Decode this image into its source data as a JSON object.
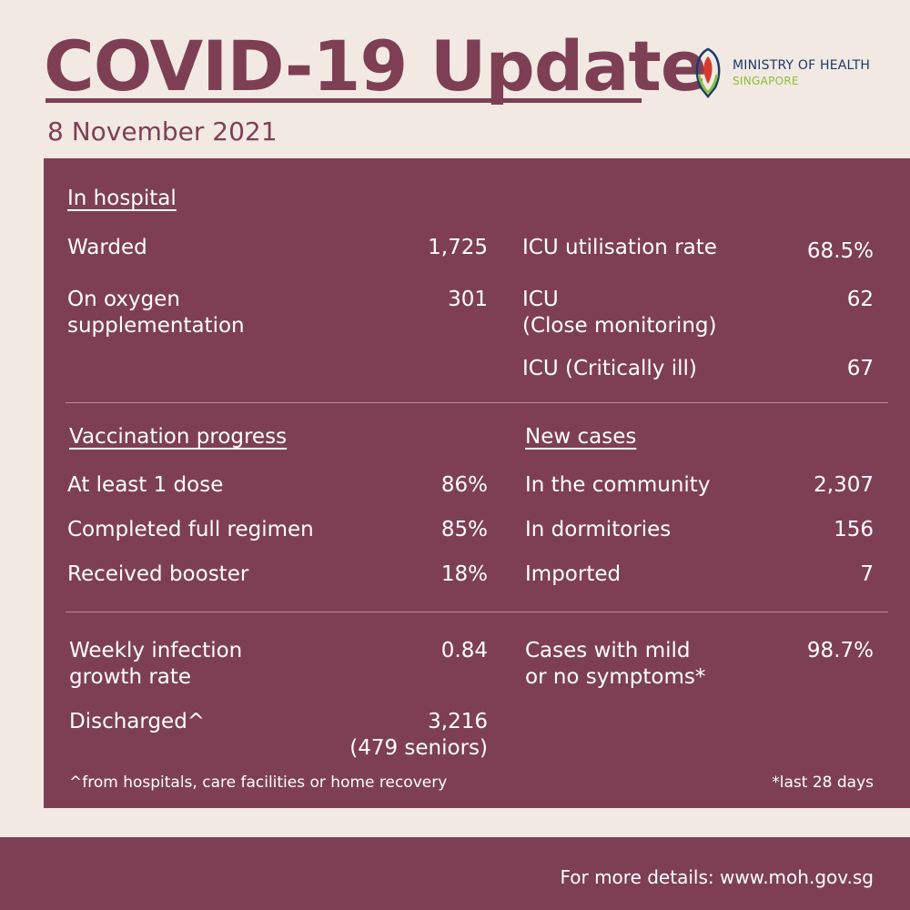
{
  "header": {
    "title": "COVID-19 Update",
    "date": "8 November 2021",
    "logo_line1": "MINISTRY OF HEALTH",
    "logo_line2": "SINGAPORE"
  },
  "hospital": {
    "heading": "In hospital",
    "warded_label": "Warded",
    "warded_value": "1,725",
    "oxygen_label_1": "On oxygen",
    "oxygen_label_2": "supplementation",
    "oxygen_value": "301",
    "icu_rate_label": "ICU utilisation rate",
    "icu_rate_value": "68.5%",
    "icu_close_label_1": "ICU",
    "icu_close_label_2": "(Close monitoring)",
    "icu_close_value": "62",
    "icu_critical_label": "ICU (Critically ill)",
    "icu_critical_value": "67"
  },
  "vaccination": {
    "heading": "Vaccination progress",
    "one_dose_label": "At least 1 dose",
    "one_dose_value": "86%",
    "full_label": "Completed full regimen",
    "full_value": "85%",
    "booster_label": "Received booster",
    "booster_value": "18%"
  },
  "new_cases": {
    "heading": "New cases",
    "community_label": "In the community",
    "community_value": "2,307",
    "dorm_label": "In dormitories",
    "dorm_value": "156",
    "imported_label": "Imported",
    "imported_value": "7"
  },
  "other": {
    "growth_label_1": "Weekly infection",
    "growth_label_2": "growth rate",
    "growth_value": "0.84",
    "discharged_label": "Discharged^",
    "discharged_value": "3,216",
    "discharged_seniors": "(479 seniors)",
    "mild_label_1": "Cases with mild",
    "mild_label_2": "or no symptoms*",
    "mild_value": "98.7%",
    "footnote_left": "^from hospitals, care facilities or home recovery",
    "footnote_right": "*last 28 days"
  },
  "footer": {
    "text": "For more details: www.moh.gov.sg"
  },
  "colors": {
    "background": "#f2e9e3",
    "accent": "#7e3f55",
    "logo_blue": "#1a3a6b",
    "logo_green": "#8bbf3a",
    "logo_red": "#d63a2f"
  }
}
